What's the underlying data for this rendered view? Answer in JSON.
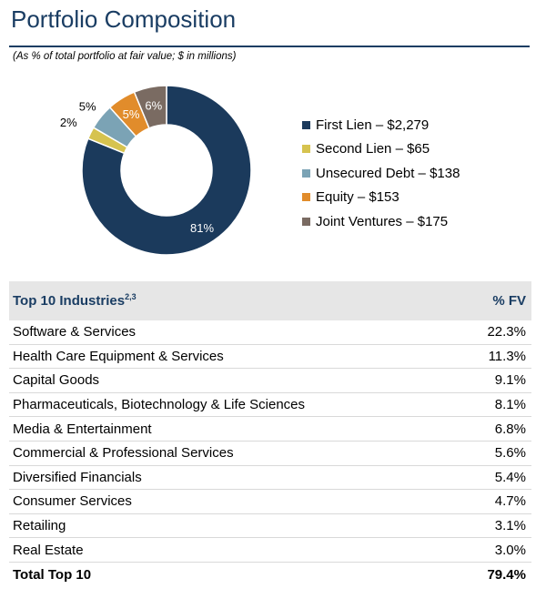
{
  "header": {
    "title": "Portfolio Composition",
    "subtitle": "(As % of total portfolio at fair value; $ in millions)"
  },
  "chart_data": {
    "type": "pie",
    "variant": "donut",
    "slices": [
      {
        "name": "First Lien",
        "value": 2279,
        "percent_label": "81%",
        "legend_label": "First Lien – $2,279",
        "color": "#1b3a5c"
      },
      {
        "name": "Second Lien",
        "value": 65,
        "percent_label": "2%",
        "legend_label": "Second Lien – $65",
        "color": "#d6c34f"
      },
      {
        "name": "Unsecured Debt",
        "value": 138,
        "percent_label": "5%",
        "legend_label": "Unsecured Debt – $138",
        "color": "#7ba3b5"
      },
      {
        "name": "Equity",
        "value": 153,
        "percent_label": "5%",
        "legend_label": "Equity – $153",
        "color": "#e18c2b"
      },
      {
        "name": "Joint Ventures",
        "value": 175,
        "percent_label": "6%",
        "legend_label": "Joint Ventures – $175",
        "color": "#7a6b62"
      }
    ],
    "legend_position": "right"
  },
  "table": {
    "header_label": "Top 10 Industries",
    "header_superscript": "2,3",
    "header_value": "% FV",
    "rows": [
      {
        "label": "Software & Services",
        "value": "22.3%"
      },
      {
        "label": "Health Care Equipment & Services",
        "value": "11.3%"
      },
      {
        "label": "Capital Goods",
        "value": "9.1%"
      },
      {
        "label": "Pharmaceuticals, Biotechnology & Life Sciences",
        "value": "8.1%"
      },
      {
        "label": "Media & Entertainment",
        "value": "6.8%"
      },
      {
        "label": "Commercial & Professional Services",
        "value": "5.6%"
      },
      {
        "label": "Diversified Financials",
        "value": "5.4%"
      },
      {
        "label": "Consumer Services",
        "value": "4.7%"
      },
      {
        "label": "Retailing",
        "value": "3.1%"
      },
      {
        "label": "Real Estate",
        "value": "3.0%"
      }
    ],
    "total": {
      "label": "Total Top 10",
      "value": "79.4%"
    }
  }
}
